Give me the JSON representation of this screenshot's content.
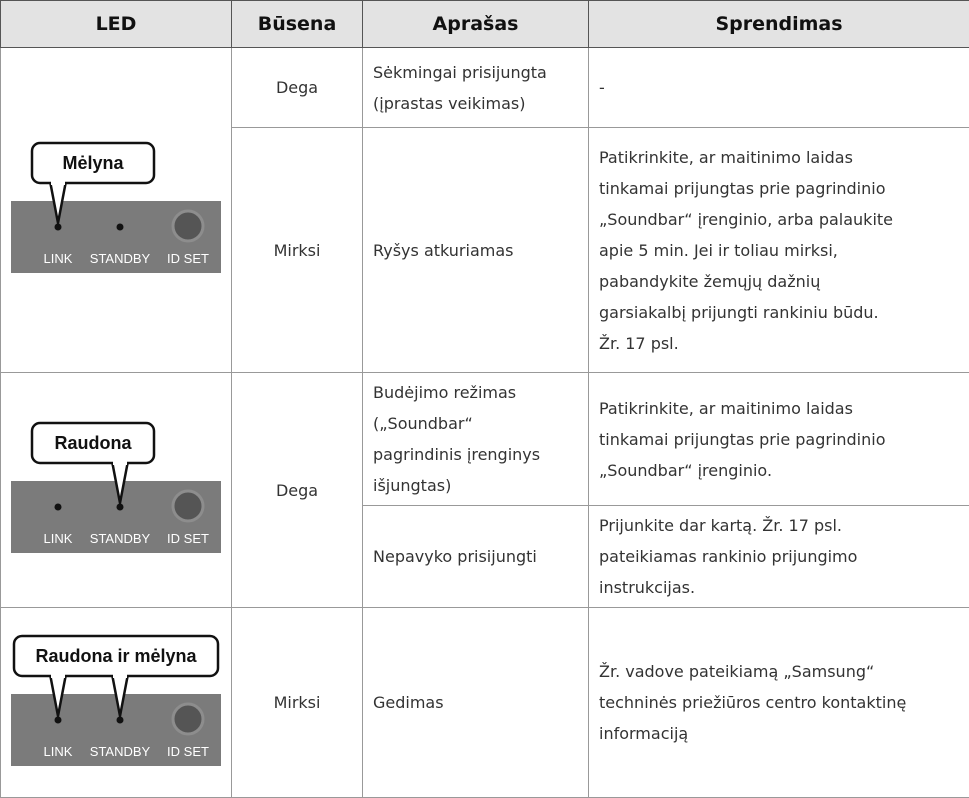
{
  "header": [
    "LED",
    "Būsena",
    "Aprašas",
    "Sprendimas"
  ],
  "groups": [
    {
      "led": {
        "bubble": "Mėlyna",
        "labels": [
          "LINK",
          "STANDBY",
          "ID SET"
        ]
      },
      "states": [
        {
          "status": "Dega",
          "items": [
            {
              "description": [
                "Sėkmingai prisijungta",
                "(įprastas veikimas)"
              ],
              "solution": [
                "-"
              ]
            }
          ]
        },
        {
          "status": "Mirksi",
          "items": [
            {
              "description": [
                "Ryšys atkuriamas"
              ],
              "solution": [
                "Patikrinkite, ar maitinimo laidas",
                "tinkamai prijungtas prie pagrindinio",
                "„Soundbar“ įrenginio, arba palaukite",
                "apie 5 min. Jei ir toliau mirksi,",
                "pabandykite žemųjų dažnių",
                "garsiakalbį prijungti rankiniu būdu.",
                "Žr. 17 psl."
              ]
            }
          ]
        }
      ]
    },
    {
      "led": {
        "bubble": "Raudona",
        "labels": [
          "LINK",
          "STANDBY",
          "ID SET"
        ]
      },
      "states": [
        {
          "status": "Dega",
          "items": [
            {
              "description": [
                "Budėjimo režimas",
                "(„Soundbar“",
                "pagrindinis įrenginys",
                "išjungtas)"
              ],
              "solution": [
                "Patikrinkite, ar maitinimo laidas",
                "tinkamai prijungtas prie pagrindinio",
                "„Soundbar“ įrenginio."
              ]
            },
            {
              "description": [
                "Nepavyko prisijungti"
              ],
              "solution": [
                "Prijunkite dar kartą. Žr. 17 psl.",
                "pateikiamas rankinio prijungimo",
                "instrukcijas."
              ]
            }
          ]
        }
      ]
    },
    {
      "led": {
        "bubble": "Raudona ir mėlyna",
        "labels": [
          "LINK",
          "STANDBY",
          "ID SET"
        ]
      },
      "states": [
        {
          "status": "Mirksi",
          "items": [
            {
              "description": [
                "Gedimas"
              ],
              "solution": [
                "Žr. vadove pateikiamą „Samsung“",
                "techninės priežiūros centro kontaktinę",
                "informaciją"
              ]
            }
          ]
        }
      ]
    }
  ]
}
